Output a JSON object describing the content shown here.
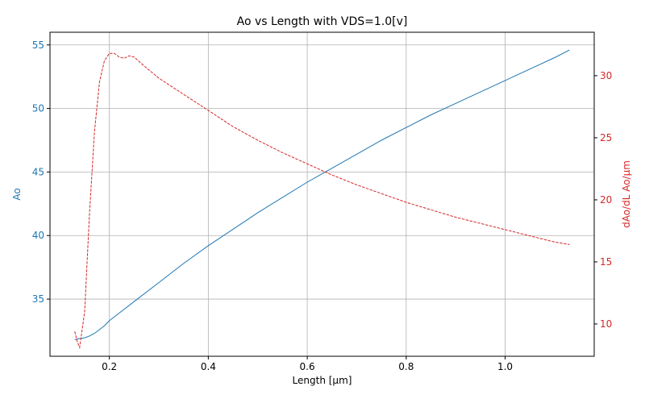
{
  "chart_data": {
    "type": "line",
    "title": "Ao vs Length with VDS=1.0[v]",
    "xlabel": "Length [µm]",
    "ylabel_left": "Ao",
    "ylabel_right": "dAo/dL Ao/µm",
    "xlim": [
      0.08,
      1.18
    ],
    "ylim_left": [
      30.5,
      56.0
    ],
    "ylim_right": [
      7.4,
      33.5
    ],
    "x_ticks": [
      "0.2",
      "0.4",
      "0.6",
      "0.8",
      "1.0"
    ],
    "x_tick_values": [
      0.2,
      0.4,
      0.6,
      0.8,
      1.0
    ],
    "left_ticks": [
      "35",
      "40",
      "45",
      "50",
      "55"
    ],
    "left_tick_values": [
      35,
      40,
      45,
      50,
      55
    ],
    "right_ticks": [
      "10",
      "15",
      "20",
      "25",
      "30"
    ],
    "right_tick_values": [
      10,
      15,
      20,
      25,
      30
    ],
    "grid": true,
    "colors": {
      "left": "#1f77b4",
      "right": "#d62728"
    },
    "series": [
      {
        "axis": "left",
        "style": "solid",
        "x": [
          0.13,
          0.14,
          0.15,
          0.16,
          0.17,
          0.18,
          0.19,
          0.2,
          0.22,
          0.25,
          0.3,
          0.35,
          0.4,
          0.45,
          0.5,
          0.55,
          0.6,
          0.65,
          0.7,
          0.75,
          0.8,
          0.85,
          0.9,
          0.95,
          1.0,
          1.05,
          1.1,
          1.13
        ],
        "y": [
          31.8,
          31.9,
          31.95,
          32.1,
          32.3,
          32.6,
          32.9,
          33.3,
          33.9,
          34.8,
          36.3,
          37.8,
          39.2,
          40.5,
          41.8,
          43.0,
          44.2,
          45.3,
          46.4,
          47.5,
          48.5,
          49.5,
          50.4,
          51.3,
          52.2,
          53.1,
          54.0,
          54.6
        ]
      },
      {
        "axis": "right",
        "style": "dashed",
        "x": [
          0.13,
          0.135,
          0.14,
          0.15,
          0.16,
          0.17,
          0.18,
          0.19,
          0.2,
          0.21,
          0.22,
          0.23,
          0.24,
          0.25,
          0.27,
          0.3,
          0.35,
          0.4,
          0.45,
          0.5,
          0.55,
          0.6,
          0.65,
          0.7,
          0.75,
          0.8,
          0.85,
          0.9,
          0.95,
          1.0,
          1.05,
          1.1,
          1.13
        ],
        "y": [
          9.4,
          8.6,
          8.1,
          11.0,
          19.0,
          25.5,
          29.5,
          31.2,
          31.8,
          31.8,
          31.5,
          31.4,
          31.6,
          31.5,
          30.8,
          29.8,
          28.5,
          27.2,
          25.9,
          24.8,
          23.8,
          22.9,
          22.0,
          21.2,
          20.5,
          19.8,
          19.2,
          18.6,
          18.1,
          17.6,
          17.1,
          16.6,
          16.4
        ]
      }
    ]
  }
}
